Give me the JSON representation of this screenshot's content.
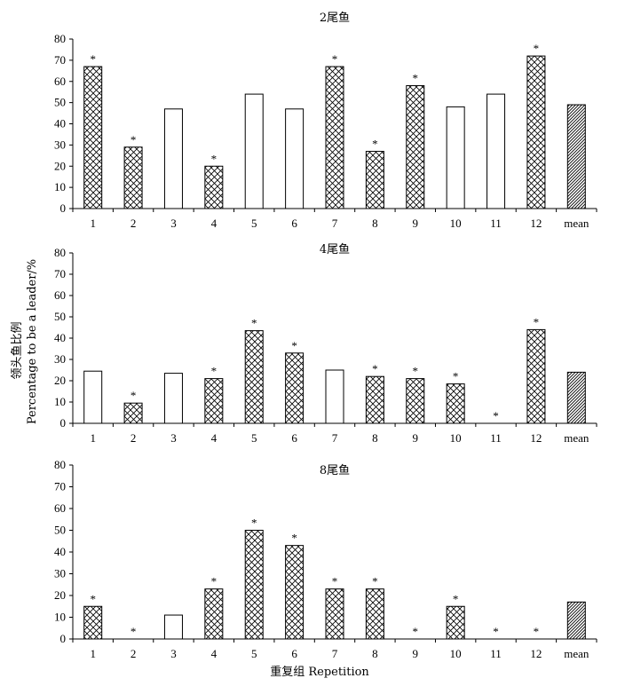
{
  "figure": {
    "ylabel_cn": "领头鱼比例",
    "ylabel_en": "Percentage to be a leader/%",
    "xlabel": "重复组 Repetition"
  },
  "chart_data": [
    {
      "type": "bar",
      "title": "2尾鱼",
      "categories": [
        "1",
        "2",
        "3",
        "4",
        "5",
        "6",
        "7",
        "8",
        "9",
        "10",
        "11",
        "12",
        "mean"
      ],
      "values": [
        67,
        29,
        47,
        20,
        54,
        47,
        67,
        27,
        58,
        48,
        54,
        72,
        49
      ],
      "significant": [
        true,
        true,
        false,
        true,
        false,
        false,
        true,
        true,
        true,
        false,
        false,
        true,
        false
      ],
      "ylim": [
        0,
        80
      ],
      "yticks": [
        0,
        10,
        20,
        30,
        40,
        50,
        60,
        70,
        80
      ]
    },
    {
      "type": "bar",
      "title": "4尾鱼",
      "categories": [
        "1",
        "2",
        "3",
        "4",
        "5",
        "6",
        "7",
        "8",
        "9",
        "10",
        "11",
        "12",
        "mean"
      ],
      "values": [
        24.5,
        9.5,
        23.5,
        21,
        43.5,
        33,
        25,
        22,
        21,
        18.5,
        0,
        44,
        24
      ],
      "significant": [
        false,
        true,
        false,
        true,
        true,
        true,
        false,
        true,
        true,
        true,
        true,
        true,
        false
      ],
      "ylim": [
        0,
        80
      ],
      "yticks": [
        0,
        10,
        20,
        30,
        40,
        50,
        60,
        70,
        80
      ]
    },
    {
      "type": "bar",
      "title": "8尾鱼",
      "categories": [
        "1",
        "2",
        "3",
        "4",
        "5",
        "6",
        "7",
        "8",
        "9",
        "10",
        "11",
        "12",
        "mean"
      ],
      "values": [
        15,
        0,
        11,
        23,
        50,
        43,
        23,
        23,
        0,
        15,
        0,
        0,
        17
      ],
      "significant": [
        true,
        true,
        false,
        true,
        true,
        true,
        true,
        true,
        true,
        true,
        true,
        true,
        false
      ],
      "ylim": [
        0,
        80
      ],
      "yticks": [
        0,
        10,
        20,
        30,
        40,
        50,
        60,
        70,
        80
      ]
    }
  ],
  "legend_styles": {
    "significant": "crosshatch",
    "not_significant": "white",
    "mean": "diagonal-hatch",
    "marker": "*"
  }
}
